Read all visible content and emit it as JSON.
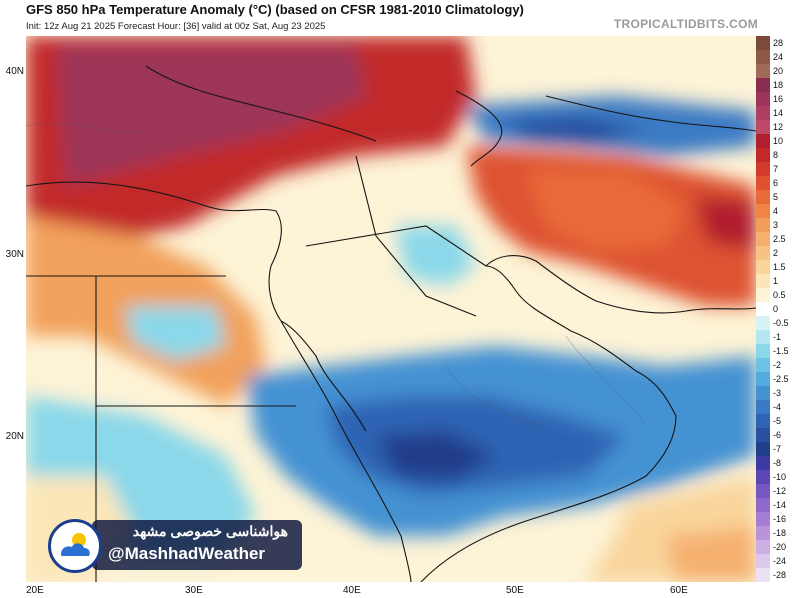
{
  "header": {
    "title": "GFS 850 hPa Temperature Anomaly (°C) (based on CFSR 1981-2010 Climatology)",
    "subtitle": "Init: 12z Aug 21 2025   Forecast Hour: [36]   valid at 00z Sat, Aug 23 2025",
    "brand": "TROPICALTIDBITS.COM"
  },
  "axes": {
    "lat_labels": [
      "40N",
      "30N",
      "20N"
    ],
    "lon_labels": [
      "20E",
      "30E",
      "40E",
      "50E",
      "60E"
    ]
  },
  "colorbar": {
    "labels": [
      "28",
      "24",
      "20",
      "18",
      "16",
      "14",
      "12",
      "10",
      "8",
      "7",
      "6",
      "5",
      "4",
      "3",
      "2.5",
      "2",
      "1.5",
      "1",
      "0.5",
      "0",
      "-0.5",
      "-1",
      "-1.5",
      "-2",
      "-2.5",
      "-3",
      "-4",
      "-5",
      "-6",
      "-7",
      "-8",
      "-10",
      "-12",
      "-14",
      "-16",
      "-18",
      "-20",
      "-24",
      "-28"
    ],
    "colors": [
      "#7b4a3a",
      "#8e5a48",
      "#a06a57",
      "#8a2c52",
      "#9c3559",
      "#ae3f60",
      "#bf4a67",
      "#b11f2e",
      "#c22a2a",
      "#d13b2a",
      "#de5230",
      "#e86a38",
      "#ef8445",
      "#f29c5a",
      "#f5b06f",
      "#f7c284",
      "#f9d59c",
      "#fbe6b8",
      "#fdf3d6",
      "#ffffff",
      "#d8f3f6",
      "#b3e8f0",
      "#8ad8ea",
      "#6cc3e6",
      "#54abe0",
      "#4592d3",
      "#3a7ac4",
      "#2f63b4",
      "#284fa0",
      "#213e8a",
      "#3b3aa0",
      "#5a47b3",
      "#7656c2",
      "#8f68cc",
      "#a57dd4",
      "#b994da",
      "#cbaee2",
      "#dcc8ea",
      "#ece2f3"
    ]
  },
  "watermark": {
    "persian": "هواشناسی خصوصی مشهد",
    "handle": "@MashhadWeather",
    "logo_icon": "cloud-sun-logo-icon"
  }
}
